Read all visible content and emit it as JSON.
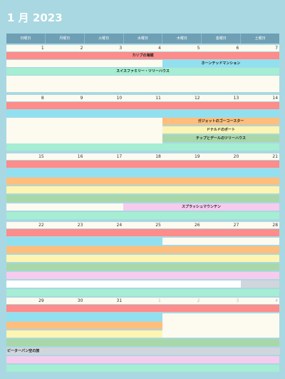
{
  "title": "1 月 2023",
  "weekdays": [
    "日曜日",
    "月曜日",
    "火曜日",
    "水曜日",
    "木曜日",
    "金曜日",
    "土曜日"
  ],
  "weeks": [
    {
      "days": [
        "1",
        "2",
        "3",
        "4",
        "5",
        "6",
        "7"
      ],
      "dim": [
        false,
        false,
        false,
        false,
        false,
        false,
        false
      ]
    },
    {
      "days": [
        "8",
        "9",
        "10",
        "11",
        "12",
        "13",
        "14"
      ],
      "dim": [
        false,
        false,
        false,
        false,
        false,
        false,
        false
      ]
    },
    {
      "days": [
        "15",
        "16",
        "17",
        "18",
        "19",
        "20",
        "21"
      ],
      "dim": [
        false,
        false,
        false,
        false,
        false,
        false,
        false
      ]
    },
    {
      "days": [
        "22",
        "23",
        "24",
        "25",
        "26",
        "27",
        "28"
      ],
      "dim": [
        false,
        false,
        false,
        false,
        false,
        false,
        false
      ]
    },
    {
      "days": [
        "29",
        "30",
        "31",
        "1",
        "2",
        "3",
        "4"
      ],
      "dim": [
        false,
        false,
        false,
        true,
        true,
        true,
        true
      ]
    }
  ],
  "events": {
    "e1": "カリブの海賊",
    "e2": "ホーンテッドマンション",
    "e3": "スイスファミリー・ツリーハウス",
    "e4": "ガジェットのゴーコースター",
    "e5": "ドナルドのボート",
    "e6": "チップとデールのツリーハウス",
    "e7": "スプラッシュマウンテン",
    "e8": "ピーターパン空の旅"
  },
  "colors": {
    "red": "#fd8c8a",
    "blue": "#90e0f0",
    "mint": "#a5edd3",
    "orange": "#ffbe7c",
    "yellow": "#fff5b2",
    "green": "#a8d8a8",
    "pink": "#f7cbee",
    "gray": "#d0d6dc"
  }
}
